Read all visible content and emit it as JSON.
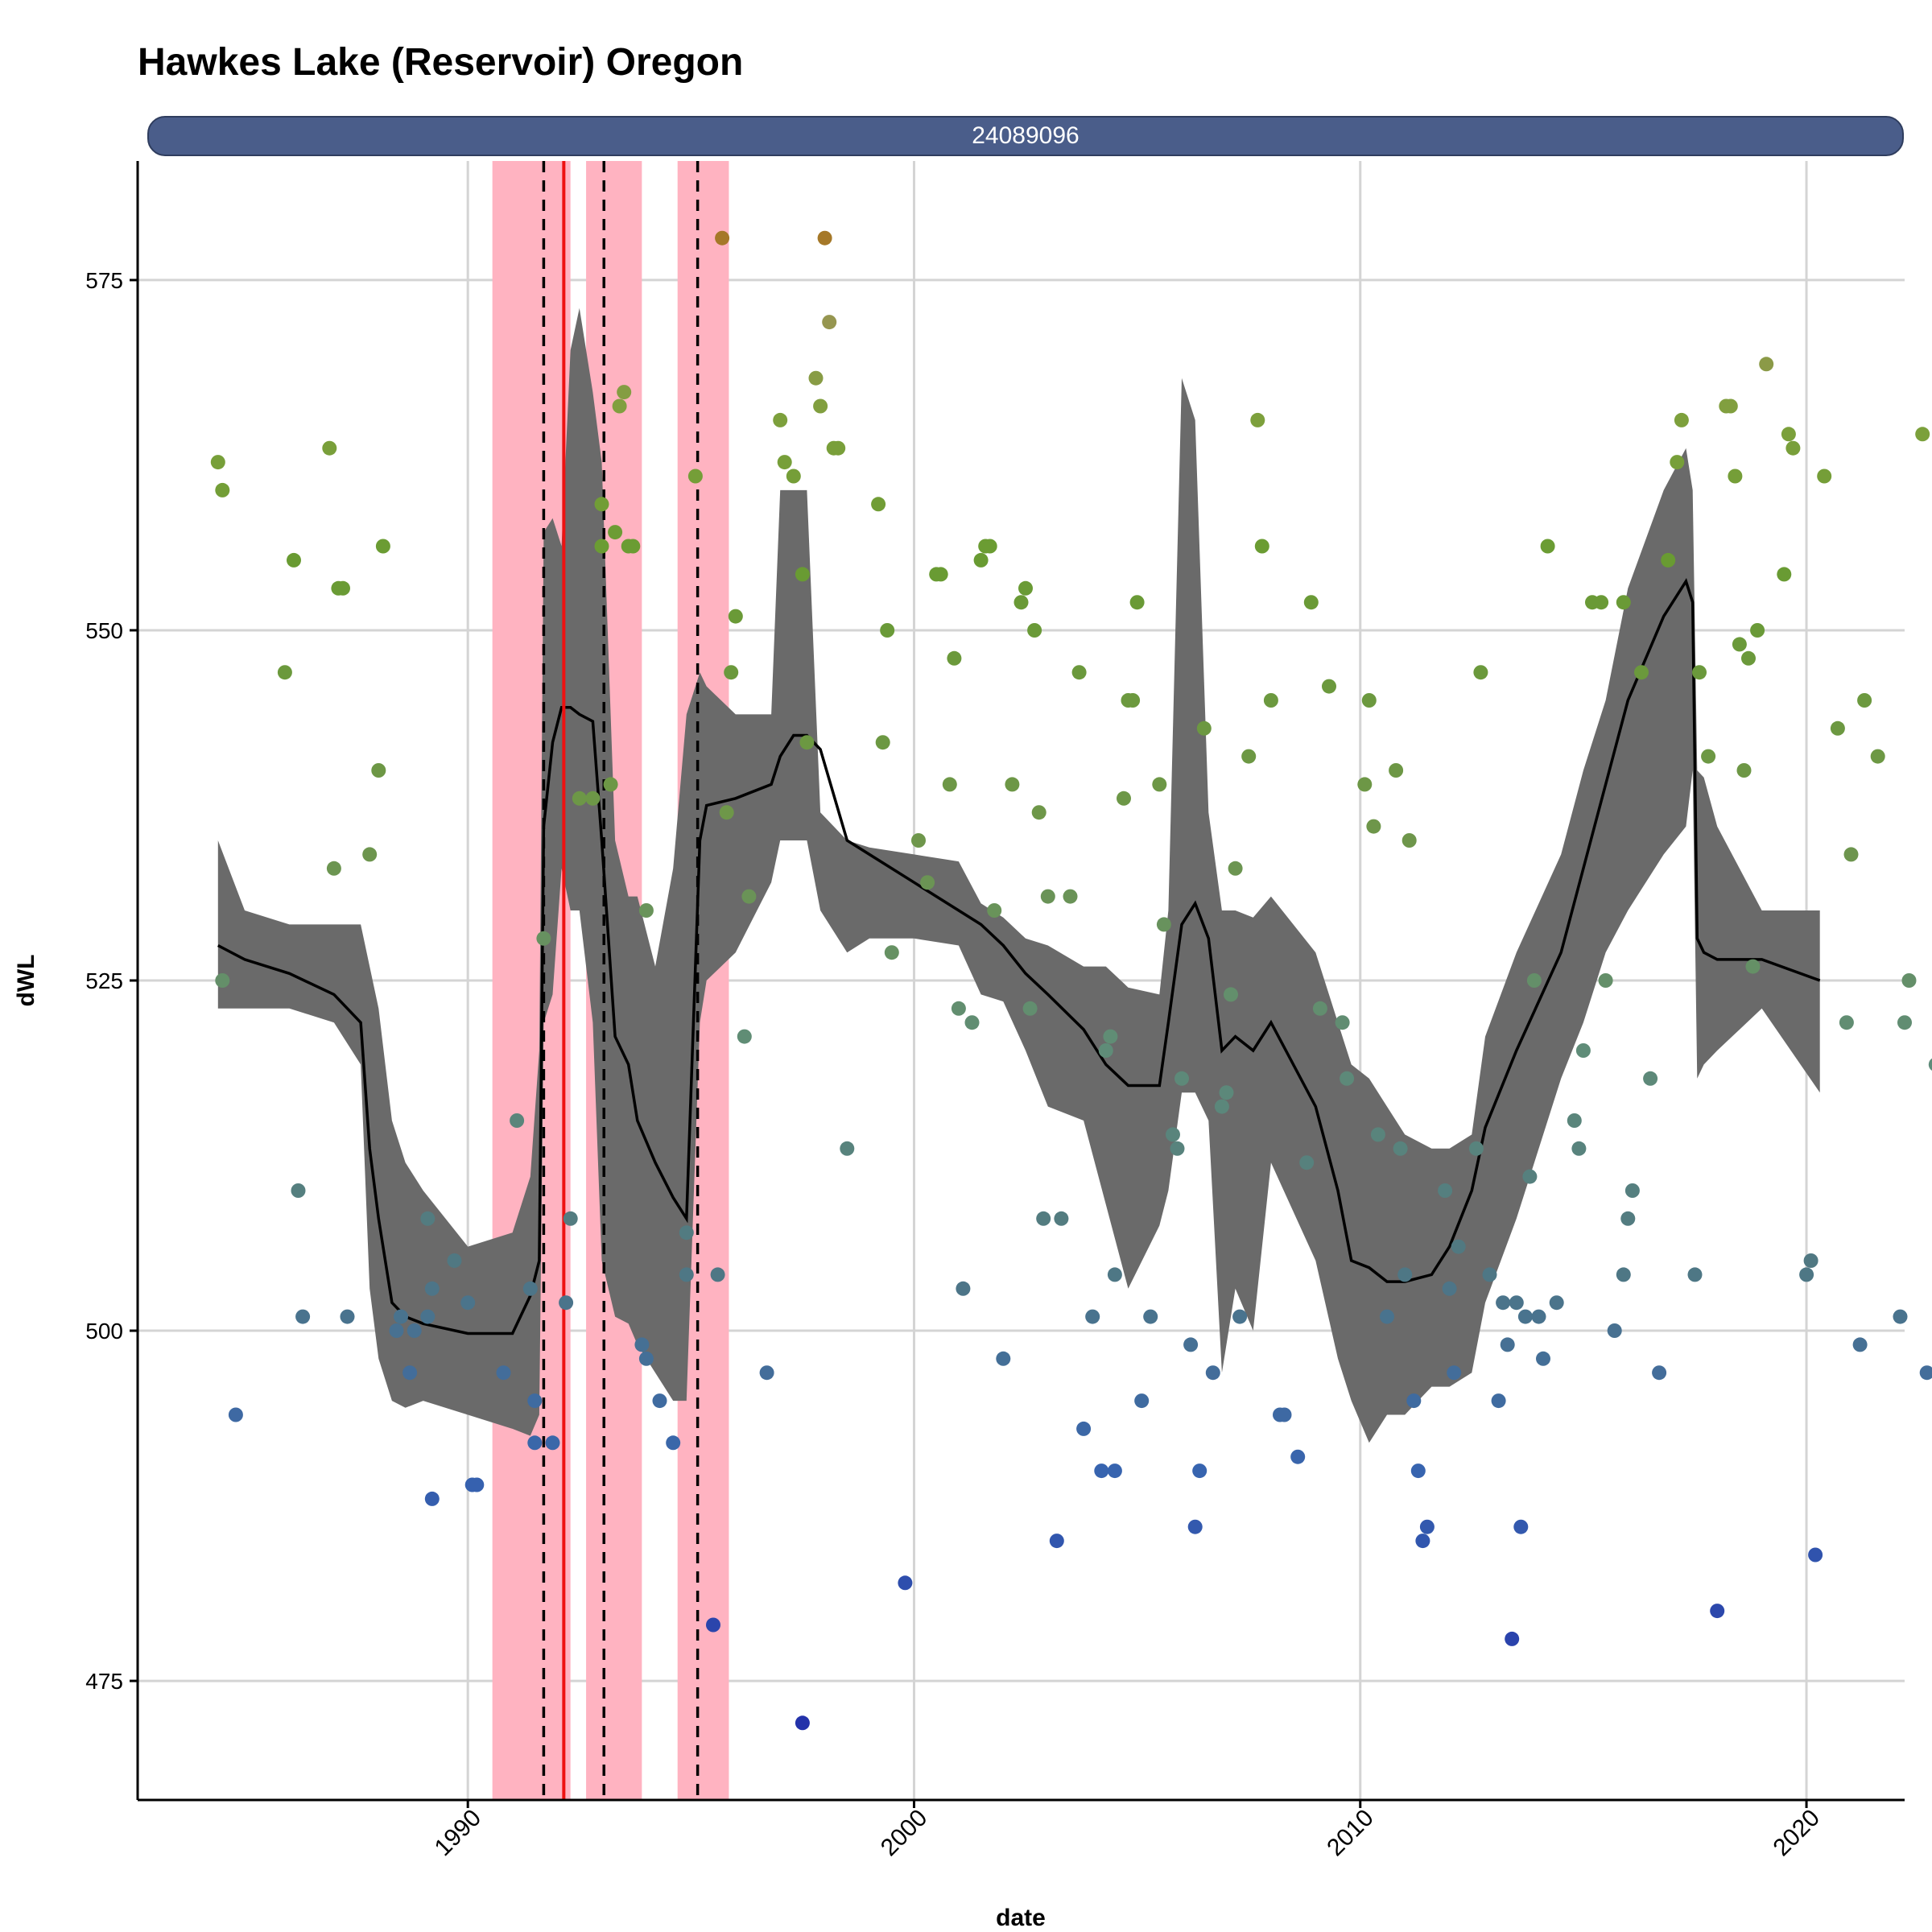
{
  "title": "Hawkes Lake (Reservoir) Oregon",
  "strip_label": "24089096",
  "chart_data": {
    "type": "scatter",
    "title": "Hawkes Lake (Reservoir) Oregon",
    "facet": "24089096",
    "xlabel": "date",
    "ylabel": "dWL",
    "xlim": [
      1982.6,
      2022.2
    ],
    "ylim": [
      466.5,
      583.5
    ],
    "x_ticks": [
      "1990",
      "2000",
      "2010",
      "2020"
    ],
    "y_ticks": [
      "475",
      "500",
      "525",
      "550",
      "575"
    ],
    "grid": true,
    "colors": {
      "shade": "#ffb3c1",
      "ribbon": "#6a6a6a",
      "line": "#000000",
      "red_line": "#ee1111",
      "dashed": "#000000"
    },
    "shaded_periods": [
      [
        1990.55,
        1992.3
      ],
      [
        1992.65,
        1993.9
      ],
      [
        1994.7,
        1995.85
      ]
    ],
    "dashed_lines": [
      1991.7,
      1993.05,
      1995.15
    ],
    "red_line": 1992.15,
    "smooth": {
      "x": [
        1984.4,
        1985.0,
        1986.0,
        1987.0,
        1987.6,
        1987.8,
        1988.0,
        1988.3,
        1988.6,
        1989.0,
        1990.0,
        1991.0,
        1991.4,
        1991.6,
        1991.7,
        1991.9,
        1992.1,
        1992.3,
        1992.5,
        1992.8,
        1993.0,
        1993.3,
        1993.6,
        1993.8,
        1994.2,
        1994.6,
        1994.9,
        1995.2,
        1995.35,
        1996.0,
        1996.8,
        1997.0,
        1997.3,
        1997.6,
        1997.9,
        1998.5,
        1999.0,
        2000.0,
        2001.0,
        2001.5,
        2002.0,
        2002.5,
        2003.0,
        2003.8,
        2004.3,
        2004.8,
        2005.5,
        2005.7,
        2006.0,
        2006.3,
        2006.6,
        2006.9,
        2007.2,
        2007.6,
        2008.0,
        2009.0,
        2009.5,
        2009.8,
        2010.2,
        2010.6,
        2011.0,
        2011.6,
        2012.0,
        2012.5,
        2012.8,
        2013.5,
        2014.5,
        2015.0,
        2015.5,
        2016.0,
        2016.8,
        2017.3,
        2017.45,
        2017.55,
        2017.7,
        2018.0,
        2019.0,
        2020.3
      ],
      "y": [
        527.5,
        526.5,
        525.5,
        524.0,
        522.0,
        513.0,
        508.0,
        502.0,
        501.0,
        500.5,
        499.8,
        499.8,
        502.5,
        505.0,
        536.0,
        542.0,
        544.5,
        544.5,
        544.0,
        543.5,
        535.0,
        521.0,
        519.0,
        515.0,
        512.0,
        509.5,
        508.0,
        535.0,
        537.5,
        538.0,
        539.0,
        541.0,
        542.5,
        542.5,
        541.5,
        535.0,
        534.0,
        532.0,
        530.0,
        529.0,
        527.5,
        525.5,
        524.0,
        521.5,
        519.0,
        517.5,
        517.5,
        522.0,
        529.0,
        530.5,
        528.0,
        520.0,
        521.0,
        520.0,
        522.0,
        516.0,
        510.0,
        505.0,
        504.5,
        503.5,
        503.5,
        504.0,
        506.0,
        510.0,
        514.5,
        520.0,
        527.0,
        533.0,
        539.0,
        545.0,
        551.0,
        553.5,
        552.0,
        528.0,
        527.0,
        526.5,
        526.5,
        525.0
      ],
      "upper": [
        535.0,
        530.0,
        529.0,
        529.0,
        529.0,
        526.0,
        523.0,
        515.0,
        512.0,
        510.0,
        506.0,
        507.0,
        511.0,
        520.0,
        557.0,
        558.0,
        556.0,
        570.0,
        573.0,
        567.0,
        562.0,
        535.0,
        531.0,
        531.0,
        526.0,
        533.0,
        544.0,
        547.0,
        546.0,
        544.0,
        544.0,
        560.0,
        560.0,
        560.0,
        537.0,
        535.0,
        534.5,
        534.0,
        533.5,
        530.5,
        529.5,
        528.0,
        527.5,
        526.0,
        526.0,
        524.5,
        524.0,
        530.0,
        568.0,
        565.0,
        537.0,
        530.0,
        530.0,
        529.5,
        531.0,
        527.0,
        522.0,
        519.0,
        518.0,
        516.0,
        514.0,
        513.0,
        513.0,
        514.0,
        521.0,
        527.0,
        534.0,
        540.0,
        545.0,
        553.0,
        560.0,
        563.0,
        560.0,
        540.0,
        539.5,
        536.0,
        530.0,
        530.0
      ],
      "lower": [
        523.0,
        523.0,
        523.0,
        522.0,
        519.0,
        503.0,
        498.0,
        495.0,
        494.5,
        495.0,
        494.0,
        493.0,
        492.5,
        494.0,
        522.0,
        524.0,
        533.0,
        530.0,
        530.0,
        522.0,
        505.0,
        501.0,
        500.5,
        499.0,
        497.0,
        495.0,
        495.0,
        522.0,
        525.0,
        527.0,
        532.0,
        535.0,
        535.0,
        535.0,
        530.0,
        527.0,
        528.0,
        528.0,
        527.5,
        524.0,
        523.5,
        520.0,
        516.0,
        515.0,
        509.0,
        503.0,
        507.5,
        510.0,
        517.0,
        517.0,
        515.0,
        497.0,
        503.0,
        500.0,
        512.0,
        505.0,
        498.0,
        495.0,
        492.0,
        494.0,
        494.0,
        496.0,
        496.0,
        497.0,
        502.0,
        508.0,
        518.0,
        522.0,
        527.0,
        530.0,
        534.0,
        536.0,
        540.0,
        518.0,
        519.0,
        520.0,
        523.0,
        517.0
      ]
    },
    "points": [
      [
        1984.4,
        562
      ],
      [
        1984.5,
        560
      ],
      [
        1984.5,
        525
      ],
      [
        1984.8,
        494
      ],
      [
        1985.9,
        547
      ],
      [
        1986.1,
        555
      ],
      [
        1986.2,
        510
      ],
      [
        1986.3,
        501
      ],
      [
        1986.9,
        563
      ],
      [
        1987.0,
        533
      ],
      [
        1987.1,
        553
      ],
      [
        1987.2,
        553
      ],
      [
        1987.3,
        501
      ],
      [
        1987.8,
        534
      ],
      [
        1988.0,
        540
      ],
      [
        1988.1,
        556
      ],
      [
        1988.4,
        500
      ],
      [
        1988.5,
        501
      ],
      [
        1988.7,
        497
      ],
      [
        1988.8,
        500
      ],
      [
        1989.1,
        508
      ],
      [
        1989.1,
        501
      ],
      [
        1989.2,
        503
      ],
      [
        1989.2,
        488
      ],
      [
        1989.7,
        505
      ],
      [
        1990.0,
        502
      ],
      [
        1990.1,
        489
      ],
      [
        1990.2,
        489
      ],
      [
        1990.8,
        497
      ],
      [
        1991.1,
        515
      ],
      [
        1991.4,
        503
      ],
      [
        1991.5,
        495
      ],
      [
        1991.5,
        492
      ],
      [
        1991.7,
        528
      ],
      [
        1991.9,
        492
      ],
      [
        1992.2,
        502
      ],
      [
        1992.3,
        508
      ],
      [
        1992.5,
        538
      ],
      [
        1992.8,
        538
      ],
      [
        1993.0,
        559
      ],
      [
        1993.0,
        556
      ],
      [
        1993.2,
        539
      ],
      [
        1993.3,
        557
      ],
      [
        1993.4,
        566
      ],
      [
        1993.5,
        567
      ],
      [
        1993.6,
        556
      ],
      [
        1993.7,
        556
      ],
      [
        1993.9,
        499
      ],
      [
        1994.0,
        498
      ],
      [
        1994.0,
        530
      ],
      [
        1994.3,
        495
      ],
      [
        1994.6,
        492
      ],
      [
        1994.9,
        504
      ],
      [
        1994.9,
        507
      ],
      [
        1995.1,
        561
      ],
      [
        1995.5,
        479
      ],
      [
        1995.6,
        504
      ],
      [
        1995.7,
        578
      ],
      [
        1995.8,
        537
      ],
      [
        1995.9,
        547
      ],
      [
        1996.0,
        551
      ],
      [
        1996.2,
        521
      ],
      [
        1996.3,
        531
      ],
      [
        1996.7,
        497
      ],
      [
        1997.0,
        565
      ],
      [
        1997.1,
        562
      ],
      [
        1997.3,
        561
      ],
      [
        1997.5,
        472
      ],
      [
        1997.5,
        554
      ],
      [
        1997.6,
        542
      ],
      [
        1997.8,
        568
      ],
      [
        1997.9,
        566
      ],
      [
        1998.0,
        578
      ],
      [
        1998.1,
        572
      ],
      [
        1998.2,
        563
      ],
      [
        1998.3,
        563
      ],
      [
        1998.5,
        513
      ],
      [
        1999.2,
        559
      ],
      [
        1999.3,
        542
      ],
      [
        1999.4,
        550
      ],
      [
        1999.5,
        527
      ],
      [
        1999.8,
        482
      ],
      [
        2000.1,
        535
      ],
      [
        2000.3,
        532
      ],
      [
        2000.5,
        554
      ],
      [
        2000.6,
        554
      ],
      [
        2000.8,
        539
      ],
      [
        2000.9,
        548
      ],
      [
        2001.0,
        523
      ],
      [
        2001.1,
        503
      ],
      [
        2001.3,
        522
      ],
      [
        2001.5,
        555
      ],
      [
        2001.6,
        556
      ],
      [
        2001.7,
        556
      ],
      [
        2001.8,
        530
      ],
      [
        2002.0,
        498
      ],
      [
        2002.2,
        539
      ],
      [
        2002.4,
        552
      ],
      [
        2002.5,
        553
      ],
      [
        2002.6,
        523
      ],
      [
        2002.7,
        550
      ],
      [
        2002.8,
        537
      ],
      [
        2002.9,
        508
      ],
      [
        2003.0,
        531
      ],
      [
        2003.2,
        485
      ],
      [
        2003.3,
        508
      ],
      [
        2003.5,
        531
      ],
      [
        2003.7,
        547
      ],
      [
        2003.8,
        493
      ],
      [
        2004.0,
        501
      ],
      [
        2004.2,
        490
      ],
      [
        2004.3,
        520
      ],
      [
        2004.4,
        521
      ],
      [
        2004.5,
        490
      ],
      [
        2004.5,
        504
      ],
      [
        2004.7,
        538
      ],
      [
        2004.8,
        545
      ],
      [
        2004.9,
        545
      ],
      [
        2005.0,
        552
      ],
      [
        2005.1,
        495
      ],
      [
        2005.3,
        501
      ],
      [
        2005.5,
        539
      ],
      [
        2005.6,
        529
      ],
      [
        2005.8,
        514
      ],
      [
        2005.9,
        513
      ],
      [
        2006.0,
        518
      ],
      [
        2006.2,
        499
      ],
      [
        2006.3,
        486
      ],
      [
        2006.4,
        490
      ],
      [
        2006.5,
        543
      ],
      [
        2006.7,
        497
      ],
      [
        2006.9,
        516
      ],
      [
        2007.0,
        517
      ],
      [
        2007.1,
        524
      ],
      [
        2007.2,
        533
      ],
      [
        2007.3,
        501
      ],
      [
        2007.5,
        541
      ],
      [
        2007.7,
        565
      ],
      [
        2007.8,
        556
      ],
      [
        2008.0,
        545
      ],
      [
        2008.2,
        494
      ],
      [
        2008.3,
        494
      ],
      [
        2008.6,
        491
      ],
      [
        2008.8,
        512
      ],
      [
        2008.9,
        552
      ],
      [
        2009.1,
        523
      ],
      [
        2009.3,
        546
      ],
      [
        2009.6,
        522
      ],
      [
        2009.7,
        518
      ],
      [
        2010.1,
        539
      ],
      [
        2010.2,
        545
      ],
      [
        2010.3,
        536
      ],
      [
        2010.4,
        514
      ],
      [
        2010.6,
        501
      ],
      [
        2010.8,
        540
      ],
      [
        2010.9,
        513
      ],
      [
        2011.0,
        504
      ],
      [
        2011.1,
        535
      ],
      [
        2011.2,
        495
      ],
      [
        2011.3,
        490
      ],
      [
        2011.4,
        485
      ],
      [
        2011.5,
        486
      ],
      [
        2011.9,
        510
      ],
      [
        2012.0,
        503
      ],
      [
        2012.1,
        497
      ],
      [
        2012.2,
        506
      ],
      [
        2012.6,
        513
      ],
      [
        2012.7,
        547
      ],
      [
        2012.9,
        504
      ],
      [
        2013.1,
        495
      ],
      [
        2013.2,
        502
      ],
      [
        2013.3,
        499
      ],
      [
        2013.4,
        478
      ],
      [
        2013.5,
        502
      ],
      [
        2013.6,
        486
      ],
      [
        2013.7,
        501
      ],
      [
        2013.8,
        511
      ],
      [
        2013.9,
        525
      ],
      [
        2014.0,
        501
      ],
      [
        2014.1,
        498
      ],
      [
        2014.2,
        556
      ],
      [
        2014.4,
        502
      ],
      [
        2014.8,
        515
      ],
      [
        2014.9,
        513
      ],
      [
        2015.0,
        520
      ],
      [
        2015.2,
        552
      ],
      [
        2015.4,
        552
      ],
      [
        2015.5,
        525
      ],
      [
        2015.7,
        500
      ],
      [
        2015.9,
        552
      ],
      [
        2015.9,
        504
      ],
      [
        2016.0,
        508
      ],
      [
        2016.1,
        510
      ],
      [
        2016.3,
        547
      ],
      [
        2016.5,
        518
      ],
      [
        2016.7,
        497
      ],
      [
        2016.9,
        555
      ],
      [
        2017.1,
        562
      ],
      [
        2017.2,
        565
      ],
      [
        2017.5,
        504
      ],
      [
        2017.6,
        547
      ],
      [
        2017.8,
        541
      ],
      [
        2018.0,
        480
      ],
      [
        2018.2,
        566
      ],
      [
        2018.3,
        566
      ],
      [
        2018.4,
        561
      ],
      [
        2018.5,
        549
      ],
      [
        2018.6,
        540
      ],
      [
        2018.7,
        548
      ],
      [
        2018.8,
        526
      ],
      [
        2018.9,
        550
      ],
      [
        2019.1,
        569
      ],
      [
        2019.5,
        554
      ],
      [
        2019.6,
        564
      ],
      [
        2019.7,
        563
      ],
      [
        2020.0,
        504
      ],
      [
        2020.1,
        505
      ],
      [
        2020.2,
        484
      ],
      [
        2020.4,
        561
      ],
      [
        2020.7,
        543
      ],
      [
        2020.9,
        522
      ],
      [
        2021.0,
        534
      ],
      [
        2021.2,
        499
      ],
      [
        2021.3,
        545
      ],
      [
        2021.6,
        541
      ],
      [
        2022.1,
        501
      ],
      [
        2022.2,
        522
      ],
      [
        2022.3,
        525
      ],
      [
        2022.6,
        564
      ],
      [
        2022.7,
        497
      ],
      [
        2022.9,
        519
      ]
    ]
  }
}
